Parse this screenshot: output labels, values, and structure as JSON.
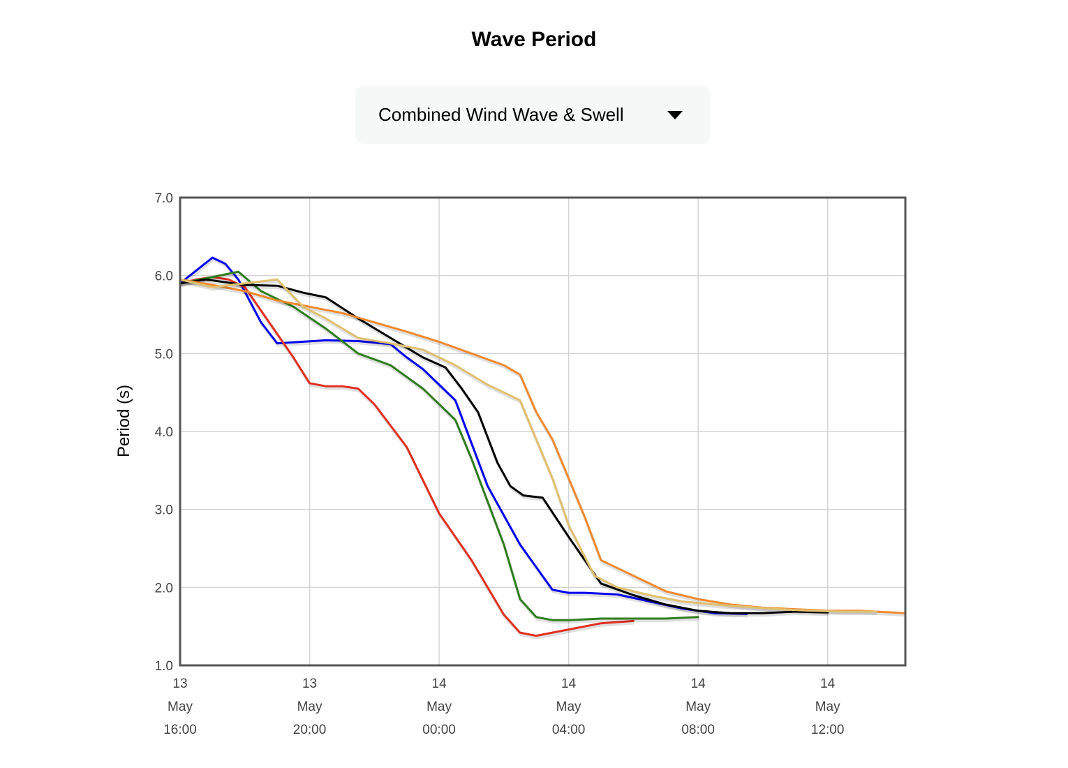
{
  "header": {
    "title": "Wave Period"
  },
  "selector": {
    "selected": "Combined Wind Wave & Swell",
    "icon": "caret-down-icon"
  },
  "chart_data": {
    "type": "line",
    "title": "",
    "xlabel": "",
    "ylabel": "Period (s)",
    "xlim_hours": [
      0,
      22.4
    ],
    "ylim": [
      1.0,
      7.0
    ],
    "yticks": [
      1.0,
      2.0,
      3.0,
      4.0,
      5.0,
      6.0,
      7.0
    ],
    "yticks_labels": [
      "1.0",
      "2.0",
      "3.0",
      "4.0",
      "5.0",
      "6.0",
      "7.0"
    ],
    "xticks": [
      {
        "hour": 0,
        "day": "13",
        "month": "May",
        "time": "16:00"
      },
      {
        "hour": 4,
        "day": "13",
        "month": "May",
        "time": "20:00"
      },
      {
        "hour": 8,
        "day": "14",
        "month": "May",
        "time": "00:00"
      },
      {
        "hour": 12,
        "day": "14",
        "month": "May",
        "time": "04:00"
      },
      {
        "hour": 16,
        "day": "14",
        "month": "May",
        "time": "08:00"
      },
      {
        "hour": 20,
        "day": "14",
        "month": "May",
        "time": "12:00"
      }
    ],
    "grid": true,
    "legend": "none",
    "series": [
      {
        "color": "#0000ee",
        "x": [
          0,
          1,
          1.4,
          1.8,
          2.5,
          3.0,
          4.5,
          5.5,
          6.5,
          7.0,
          7.5,
          8.5,
          9.5,
          10.5,
          11.5,
          12.0,
          12.5,
          13.5,
          14.5,
          15.5,
          16.5,
          17.5
        ],
        "y": [
          5.9,
          6.23,
          6.15,
          5.95,
          5.4,
          5.13,
          5.17,
          5.16,
          5.12,
          4.95,
          4.8,
          4.4,
          3.3,
          2.55,
          1.97,
          1.93,
          1.93,
          1.91,
          1.82,
          1.73,
          1.67,
          1.66
        ]
      },
      {
        "color": "#e03020",
        "x": [
          0,
          0.5,
          1.0,
          1.5,
          2.0,
          2.5,
          3.0,
          3.5,
          4.0,
          4.5,
          5.0,
          5.5,
          6.0,
          7.0,
          8.0,
          9.0,
          10.0,
          10.5,
          11.0,
          12.0,
          13.0,
          14.0
        ],
        "y": [
          5.9,
          5.95,
          5.98,
          5.95,
          5.85,
          5.55,
          5.25,
          4.95,
          4.62,
          4.58,
          4.58,
          4.55,
          4.35,
          3.8,
          2.95,
          2.35,
          1.65,
          1.42,
          1.38,
          1.46,
          1.54,
          1.57
        ]
      },
      {
        "color": "#2e7d1e",
        "x": [
          0,
          1.0,
          1.8,
          2.5,
          3.5,
          4.5,
          5.5,
          6.5,
          7.5,
          8.5,
          9.0,
          9.5,
          10.0,
          10.5,
          11.0,
          11.5,
          12.0,
          13.0,
          14.0,
          15.0,
          16.0
        ],
        "y": [
          5.9,
          5.98,
          6.05,
          5.8,
          5.6,
          5.32,
          5.0,
          4.85,
          4.55,
          4.15,
          3.65,
          3.1,
          2.55,
          1.85,
          1.62,
          1.58,
          1.58,
          1.6,
          1.6,
          1.6,
          1.62
        ]
      },
      {
        "color": "#000000",
        "x": [
          0,
          0.8,
          2.0,
          3.0,
          3.8,
          4.5,
          5.5,
          6.5,
          7.5,
          8.2,
          8.7,
          9.2,
          9.8,
          10.2,
          10.6,
          11.2,
          12.0,
          13.0,
          14.0,
          15.0,
          16.0,
          17.0,
          18.0,
          19.0,
          20.0
        ],
        "y": [
          5.9,
          5.95,
          5.88,
          5.87,
          5.78,
          5.72,
          5.45,
          5.2,
          4.95,
          4.82,
          4.55,
          4.25,
          3.6,
          3.3,
          3.18,
          3.15,
          2.65,
          2.05,
          1.9,
          1.78,
          1.7,
          1.67,
          1.67,
          1.69,
          1.68
        ]
      },
      {
        "color": "#f08a30",
        "x": [
          0,
          1.0,
          2.0,
          3.0,
          4.0,
          5.0,
          6.0,
          7.0,
          8.0,
          9.0,
          10.0,
          10.5,
          11.0,
          11.5,
          12.0,
          12.5,
          13.0,
          14.0,
          15.0,
          16.0,
          17.0,
          18.0,
          19.0,
          20.0,
          21.0,
          22.4
        ],
        "y": [
          5.95,
          5.88,
          5.8,
          5.68,
          5.6,
          5.52,
          5.4,
          5.28,
          5.15,
          5.0,
          4.85,
          4.73,
          4.25,
          3.9,
          3.4,
          2.9,
          2.35,
          2.15,
          1.95,
          1.85,
          1.78,
          1.74,
          1.72,
          1.7,
          1.7,
          1.67
        ]
      },
      {
        "color": "#e0c070",
        "x": [
          0,
          1.0,
          2.0,
          3.0,
          3.8,
          4.5,
          5.5,
          6.5,
          7.5,
          8.5,
          9.5,
          10.5,
          11.0,
          11.5,
          12.0,
          12.8,
          13.5,
          14.5,
          15.5,
          16.5,
          17.5,
          18.5,
          19.5,
          20.5,
          21.5
        ],
        "y": [
          5.95,
          5.85,
          5.9,
          5.95,
          5.6,
          5.45,
          5.2,
          5.13,
          5.05,
          4.85,
          4.6,
          4.4,
          3.9,
          3.4,
          2.8,
          2.15,
          2.0,
          1.9,
          1.82,
          1.78,
          1.75,
          1.72,
          1.7,
          1.69,
          1.69
        ]
      }
    ]
  }
}
